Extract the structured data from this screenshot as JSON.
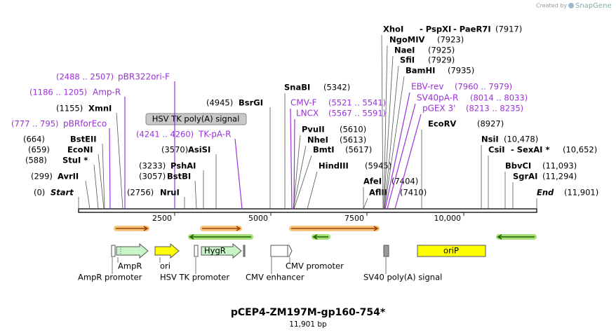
{
  "header": {
    "credit": "Created by",
    "brand": "SnapGene"
  },
  "sites": [
    {
      "names": [
        "Start"
      ],
      "position": "(0)"
    },
    {
      "names": [
        "AvrII"
      ],
      "position": "(299)"
    },
    {
      "names": [
        "StuI *"
      ],
      "position": "(588)"
    },
    {
      "names": [
        "EcoNI"
      ],
      "position": "(659)"
    },
    {
      "names": [
        "BstEII"
      ],
      "position": "(664)"
    },
    {
      "names": [
        "pBRforEco"
      ],
      "position": "(777 .. 795)",
      "color": "#9b30d9"
    },
    {
      "names": [
        "XmnI"
      ],
      "position": "(1155)"
    },
    {
      "names": [
        "Amp-R"
      ],
      "position": "(1186 .. 1205)",
      "color": "#9b30d9"
    },
    {
      "names": [
        "pBR322ori-F"
      ],
      "position": "(2488 .. 2507)",
      "color": "#9b30d9"
    },
    {
      "names": [
        "TK-pA-R"
      ],
      "position": "(4241 .. 4260)",
      "color": "#9b30d9"
    },
    {
      "names": [
        "BsrGI"
      ],
      "position": "(4945)"
    },
    {
      "names": [
        "AsiSI"
      ],
      "position": "(3570)"
    },
    {
      "names": [
        "PshAI"
      ],
      "position": "(3233)"
    },
    {
      "names": [
        "BstBI"
      ],
      "position": "(3057)"
    },
    {
      "names": [
        "NruI"
      ],
      "position": "(2756)"
    },
    {
      "names": [
        "SnaBI"
      ],
      "position": "(5342)"
    },
    {
      "names": [
        "CMV-F"
      ],
      "position": "(5521 .. 5541)",
      "color": "#9b30d9"
    },
    {
      "names": [
        "LNCX"
      ],
      "position": "(5567 .. 5591)",
      "color": "#9b30d9"
    },
    {
      "names": [
        "PvuII"
      ],
      "position": "(5610)"
    },
    {
      "names": [
        "NheI"
      ],
      "position": "(5613)"
    },
    {
      "names": [
        "BmtI"
      ],
      "position": "(5617)"
    },
    {
      "names": [
        "HindIII"
      ],
      "position": "(5945)"
    },
    {
      "names": [
        "AfeI"
      ],
      "position": "(7404)"
    },
    {
      "names": [
        "AflII"
      ],
      "position": "(7410)"
    },
    {
      "names": [
        "XhoI",
        "- PspXI",
        "- PaeR7I"
      ],
      "position": "(7917)"
    },
    {
      "names": [
        "NgoMIV"
      ],
      "position": "(7923)"
    },
    {
      "names": [
        "NaeI"
      ],
      "position": "(7925)"
    },
    {
      "names": [
        "SfiI"
      ],
      "position": "(7929)"
    },
    {
      "names": [
        "BamHI"
      ],
      "position": "(7935)"
    },
    {
      "names": [
        "EBV-rev"
      ],
      "position": "(7960 .. 7979)",
      "color": "#9b30d9"
    },
    {
      "names": [
        "SV40pA-R"
      ],
      "position": "(8014 .. 8033)",
      "color": "#9b30d9"
    },
    {
      "names": [
        "pGEX 3'"
      ],
      "position": "(8213 .. 8235)",
      "color": "#9b30d9"
    },
    {
      "names": [
        "EcoRV"
      ],
      "position": "(8927)"
    },
    {
      "names": [
        "NsiI"
      ],
      "position": "(10,478)"
    },
    {
      "names": [
        "CsiI",
        "- SexAI *"
      ],
      "position": "(10,652)"
    },
    {
      "names": [
        "BbvCI"
      ],
      "position": "(11,093)"
    },
    {
      "names": [
        "SgrAI"
      ],
      "position": "(11,294)"
    },
    {
      "names": [
        "End"
      ],
      "position": "(11,901)"
    }
  ],
  "callout": "HSV TK poly(A) signal",
  "ruler": [
    "2500",
    "5000",
    "7500",
    "10,000"
  ],
  "features": {
    "inside": [
      "HygR",
      "oriP"
    ],
    "below": [
      "AmpR",
      "ori",
      "AmpR promoter",
      "HSV TK promoter",
      "CMV enhancer",
      "CMV promoter",
      "SV40 poly(A) signal"
    ]
  },
  "footer": {
    "title": "pCEP4-ZM197M-gp160-754*",
    "size": "11,901 bp"
  }
}
